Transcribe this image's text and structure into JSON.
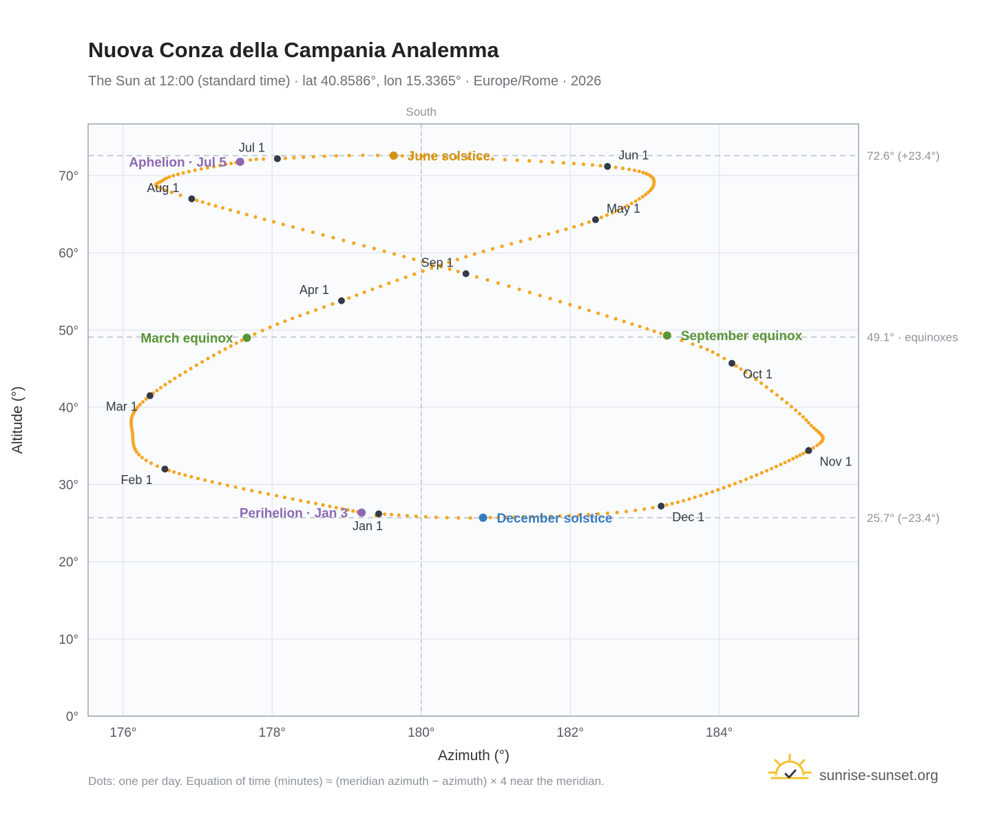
{
  "header": {
    "title": "Nuova Conza della Campania Analemma",
    "subtitle": "The Sun at 12:00 (standard time) · lat 40.8586°, lon 15.3365° · Europe/Rome · 2026"
  },
  "footer": {
    "note": "Dots: one per day. Equation of time (minutes) ≈ (meridian azimuth − azimuth) × 4 near the meridian.",
    "brand": "sunrise-sunset.org"
  },
  "colors": {
    "path": "#f5a623",
    "month_dot": "#343a46",
    "solstice_june": "#d4930f",
    "solstice_december": "#3a7cc0",
    "equinox": "#5a9435",
    "apsis": "#8e68b3",
    "plot_bg": "#f9fbfd",
    "grid": "#e4e9ee",
    "frame": "#9aa4b0",
    "ref_line": "#b9c1ca"
  },
  "chart_data": {
    "type": "scatter",
    "title": "Nuova Conza della Campania Analemma",
    "xlabel": "Azimuth (°)",
    "ylabel": "Altitude (°)",
    "xlim": [
      175.53,
      185.87
    ],
    "ylim": [
      0,
      76.7
    ],
    "x_ticks": [
      176,
      178,
      180,
      182,
      184
    ],
    "x_tick_labels": [
      "176°",
      "178°",
      "180°",
      "182°",
      "184°"
    ],
    "y_ticks": [
      0,
      10,
      20,
      30,
      40,
      50,
      60,
      70
    ],
    "y_tick_labels": [
      "0°",
      "10°",
      "20°",
      "30°",
      "40°",
      "50°",
      "60°",
      "70°"
    ],
    "grid": true,
    "meridian": {
      "azimuth": 180,
      "label": "South"
    },
    "reference_lines": [
      {
        "altitude": 72.6,
        "label": "72.6° (+23.4°)"
      },
      {
        "altitude": 49.1,
        "label": "49.1° · equinoxes"
      },
      {
        "altitude": 25.7,
        "label": "25.7° (−23.4°)"
      }
    ],
    "daily_path": {
      "points_per_year": 365,
      "description_of_anchors_in_days": true,
      "anchors": [
        {
          "day": 0,
          "az": 179.43,
          "alt": 26.2
        },
        {
          "day": 2,
          "az": 179.2,
          "alt": 26.35
        },
        {
          "day": 31,
          "az": 176.56,
          "alt": 32.0
        },
        {
          "day": 45,
          "az": 176.12,
          "alt": 37.0
        },
        {
          "day": 59,
          "az": 176.36,
          "alt": 41.5
        },
        {
          "day": 78,
          "az": 177.66,
          "alt": 49.0
        },
        {
          "day": 90,
          "az": 178.93,
          "alt": 53.8
        },
        {
          "day": 105,
          "az": 180.6,
          "alt": 59.5
        },
        {
          "day": 120,
          "az": 182.34,
          "alt": 64.3
        },
        {
          "day": 136,
          "az": 183.12,
          "alt": 68.8
        },
        {
          "day": 151,
          "az": 182.5,
          "alt": 71.2
        },
        {
          "day": 171,
          "az": 179.63,
          "alt": 72.6
        },
        {
          "day": 181,
          "az": 178.07,
          "alt": 72.2
        },
        {
          "day": 185,
          "az": 177.57,
          "alt": 71.8
        },
        {
          "day": 200,
          "az": 176.55,
          "alt": 69.5
        },
        {
          "day": 212,
          "az": 176.92,
          "alt": 67.0
        },
        {
          "day": 243,
          "az": 180.6,
          "alt": 57.3
        },
        {
          "day": 265,
          "az": 183.3,
          "alt": 49.3
        },
        {
          "day": 273,
          "az": 184.17,
          "alt": 45.7
        },
        {
          "day": 290,
          "az": 185.2,
          "alt": 38.0
        },
        {
          "day": 304,
          "az": 185.2,
          "alt": 34.4
        },
        {
          "day": 334,
          "az": 183.22,
          "alt": 27.2
        },
        {
          "day": 354,
          "az": 180.83,
          "alt": 25.7
        },
        {
          "day": 365,
          "az": 179.43,
          "alt": 26.2
        }
      ]
    },
    "month_markers": [
      {
        "label": "Jan 1",
        "az": 179.43,
        "alt": 26.2,
        "pos": "below"
      },
      {
        "label": "Feb 1",
        "az": 176.56,
        "alt": 32.0,
        "pos": "below-left"
      },
      {
        "label": "Mar 1",
        "az": 176.36,
        "alt": 41.5,
        "pos": "below-left"
      },
      {
        "label": "Apr 1",
        "az": 178.93,
        "alt": 53.8,
        "pos": "above-left"
      },
      {
        "label": "May 1",
        "az": 182.34,
        "alt": 64.3,
        "pos": "above-right"
      },
      {
        "label": "Jun 1",
        "az": 182.5,
        "alt": 71.2,
        "pos": "above-right"
      },
      {
        "label": "Jul 1",
        "az": 178.07,
        "alt": 72.2,
        "pos": "above-left"
      },
      {
        "label": "Aug 1",
        "az": 176.92,
        "alt": 67.0,
        "pos": "above-left"
      },
      {
        "label": "Sep 1",
        "az": 180.6,
        "alt": 57.3,
        "pos": "above-left"
      },
      {
        "label": "Oct 1",
        "az": 184.17,
        "alt": 45.7,
        "pos": "below-right"
      },
      {
        "label": "Nov 1",
        "az": 185.2,
        "alt": 34.4,
        "pos": "below-right"
      },
      {
        "label": "Dec 1",
        "az": 183.22,
        "alt": 27.2,
        "pos": "below-right"
      }
    ],
    "events": [
      {
        "label": "June solstice",
        "az": 179.63,
        "alt": 72.6,
        "color_key": "solstice_june",
        "side": "right"
      },
      {
        "label": "December solstice",
        "az": 180.83,
        "alt": 25.7,
        "color_key": "solstice_december",
        "side": "right"
      },
      {
        "label": "March equinox",
        "az": 177.66,
        "alt": 49.0,
        "color_key": "equinox",
        "side": "left"
      },
      {
        "label": "September equinox",
        "az": 183.3,
        "alt": 49.3,
        "color_key": "equinox",
        "side": "right"
      },
      {
        "label": "Aphelion · Jul 5",
        "az": 177.57,
        "alt": 71.8,
        "color_key": "apsis",
        "side": "left"
      },
      {
        "label": "Perihelion · Jan 3",
        "az": 179.2,
        "alt": 26.35,
        "color_key": "apsis",
        "side": "left"
      }
    ]
  }
}
